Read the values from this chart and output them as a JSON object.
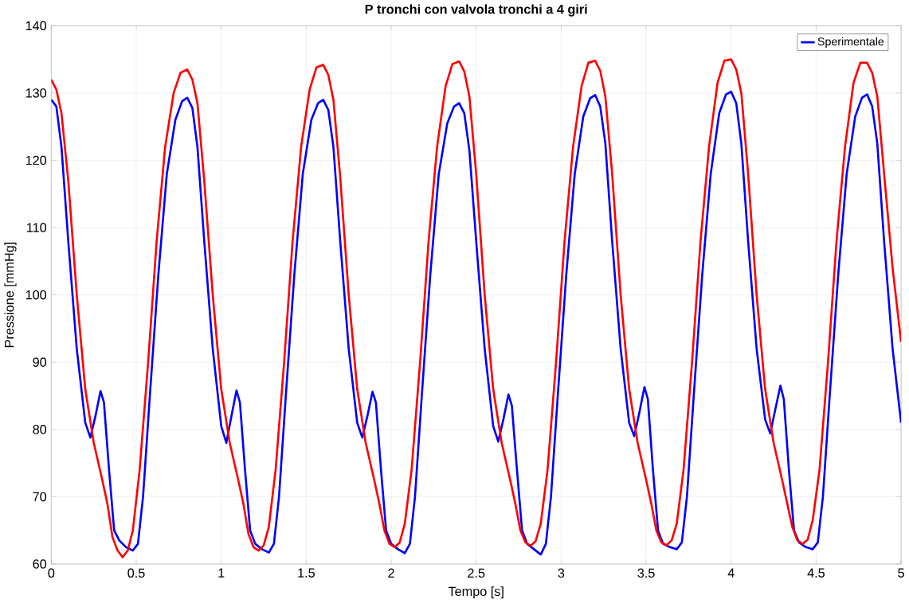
{
  "chart_data": {
    "type": "line",
    "title": "P tronchi con valvola tronchi a 4 giri",
    "xlabel": "Tempo [s]",
    "ylabel": "Pressione [mmHg]",
    "xlim": [
      0,
      5
    ],
    "ylim": [
      60,
      140
    ],
    "xticks": [
      0,
      0.5,
      1,
      1.5,
      2,
      2.5,
      3,
      3.5,
      4,
      4.5,
      5
    ],
    "yticks": [
      60,
      70,
      80,
      90,
      100,
      110,
      120,
      130,
      140
    ],
    "grid": true,
    "legend": "top right",
    "line_style": "solid",
    "marker": "none",
    "series": [
      {
        "name": "Sperimentale",
        "color": "#0000ff",
        "x": [
          0,
          0.03,
          0.06,
          0.1,
          0.15,
          0.2,
          0.23,
          0.26,
          0.29,
          0.31,
          0.34,
          0.37,
          0.4,
          0.44,
          0.48,
          0.51,
          0.54,
          0.58,
          0.63,
          0.68,
          0.73,
          0.77,
          0.8,
          0.83,
          0.86,
          0.9,
          0.95,
          1.0,
          1.03,
          1.06,
          1.09,
          1.11,
          1.14,
          1.17,
          1.2,
          1.24,
          1.28,
          1.31,
          1.34,
          1.38,
          1.43,
          1.48,
          1.53,
          1.57,
          1.6,
          1.63,
          1.66,
          1.7,
          1.75,
          1.8,
          1.83,
          1.86,
          1.89,
          1.91,
          1.94,
          1.97,
          2.0,
          2.04,
          2.08,
          2.11,
          2.14,
          2.18,
          2.23,
          2.28,
          2.33,
          2.37,
          2.4,
          2.43,
          2.46,
          2.5,
          2.55,
          2.6,
          2.63,
          2.66,
          2.69,
          2.71,
          2.74,
          2.77,
          2.8,
          2.84,
          2.88,
          2.91,
          2.94,
          2.98,
          3.03,
          3.08,
          3.13,
          3.17,
          3.2,
          3.23,
          3.26,
          3.3,
          3.35,
          3.4,
          3.43,
          3.46,
          3.49,
          3.51,
          3.54,
          3.57,
          3.6,
          3.64,
          3.68,
          3.71,
          3.74,
          3.78,
          3.83,
          3.88,
          3.93,
          3.97,
          4.0,
          4.03,
          4.06,
          4.1,
          4.15,
          4.2,
          4.23,
          4.26,
          4.29,
          4.31,
          4.34,
          4.37,
          4.4,
          4.44,
          4.48,
          4.51,
          4.54,
          4.58,
          4.63,
          4.68,
          4.73,
          4.77,
          4.8,
          4.83,
          4.86,
          4.9,
          4.95,
          5.0
        ],
        "values": [
          129,
          128,
          122,
          108,
          92,
          81,
          78.8,
          82,
          85.7,
          84,
          74,
          65,
          63.5,
          62.5,
          62,
          63,
          70,
          85,
          103,
          118,
          126,
          128.8,
          129.3,
          127.8,
          122,
          108,
          92,
          80.5,
          78,
          82,
          85.8,
          84,
          74,
          65,
          63,
          62.2,
          61.7,
          63,
          70,
          85,
          103,
          118,
          126,
          128.5,
          129,
          127.5,
          122,
          108,
          92,
          81,
          78.8,
          82,
          85.6,
          84,
          74,
          65,
          63,
          62.2,
          61.6,
          63,
          70,
          85,
          103,
          118,
          125.5,
          128,
          128.5,
          127,
          121.5,
          108,
          92,
          80.5,
          78.2,
          81.5,
          85.2,
          83.5,
          74,
          65,
          63,
          62.2,
          61.4,
          63,
          70,
          85,
          103,
          118,
          126.5,
          129.2,
          129.7,
          128,
          122.5,
          108,
          92,
          81,
          79,
          82.5,
          86.3,
          84.5,
          74,
          65,
          63,
          62.5,
          62.2,
          63.2,
          70,
          85,
          103,
          118,
          127,
          129.8,
          130.2,
          128.5,
          122.5,
          108,
          92,
          81.5,
          79.4,
          83,
          86.5,
          84.5,
          74,
          65,
          63.2,
          62.5,
          62.2,
          63.2,
          70,
          85,
          103,
          118,
          126.5,
          129.3,
          129.8,
          128,
          122.5,
          108,
          92,
          81
        ]
      },
      {
        "color": "#ff0000",
        "x": [
          0,
          0.03,
          0.06,
          0.1,
          0.15,
          0.2,
          0.25,
          0.3,
          0.33,
          0.36,
          0.39,
          0.42,
          0.45,
          0.48,
          0.52,
          0.57,
          0.62,
          0.67,
          0.72,
          0.76,
          0.8,
          0.83,
          0.86,
          0.9,
          0.95,
          1.0,
          1.05,
          1.1,
          1.13,
          1.16,
          1.19,
          1.22,
          1.25,
          1.28,
          1.32,
          1.37,
          1.42,
          1.47,
          1.52,
          1.56,
          1.6,
          1.63,
          1.66,
          1.7,
          1.75,
          1.8,
          1.85,
          1.9,
          1.93,
          1.96,
          1.99,
          2.02,
          2.05,
          2.08,
          2.12,
          2.17,
          2.22,
          2.27,
          2.32,
          2.36,
          2.4,
          2.43,
          2.46,
          2.5,
          2.55,
          2.6,
          2.65,
          2.7,
          2.73,
          2.76,
          2.79,
          2.82,
          2.85,
          2.88,
          2.92,
          2.97,
          3.02,
          3.07,
          3.12,
          3.16,
          3.2,
          3.23,
          3.26,
          3.3,
          3.35,
          3.4,
          3.45,
          3.5,
          3.53,
          3.56,
          3.59,
          3.62,
          3.65,
          3.68,
          3.72,
          3.77,
          3.82,
          3.87,
          3.92,
          3.96,
          4.0,
          4.03,
          4.06,
          4.1,
          4.15,
          4.2,
          4.25,
          4.3,
          4.33,
          4.36,
          4.39,
          4.42,
          4.45,
          4.48,
          4.52,
          4.57,
          4.62,
          4.67,
          4.72,
          4.76,
          4.8,
          4.83,
          4.86,
          4.9,
          4.95,
          5.0
        ],
        "values": [
          132,
          130.5,
          127,
          117,
          100,
          86,
          78,
          72.5,
          69,
          64,
          62,
          61,
          62,
          65,
          74,
          90,
          108,
          122,
          130,
          133,
          133.5,
          132,
          128.5,
          117,
          100,
          86,
          78,
          72.5,
          69,
          64.5,
          62.5,
          62,
          62.8,
          65.5,
          74,
          90,
          108,
          122,
          130.5,
          133.8,
          134.2,
          132.7,
          129,
          117.5,
          100,
          86,
          78,
          72.5,
          69,
          65,
          63,
          62.5,
          63.2,
          66,
          74,
          90,
          108,
          122,
          131,
          134.3,
          134.7,
          133.2,
          129.5,
          118,
          100,
          86,
          78,
          72.5,
          69,
          65,
          63.2,
          62.7,
          63.4,
          66,
          74,
          90,
          108,
          122,
          131,
          134.5,
          134.8,
          133.3,
          129.5,
          118,
          100,
          86,
          78,
          72.5,
          69,
          65,
          63.2,
          62.8,
          63.5,
          66,
          74,
          90,
          108,
          122,
          131.5,
          134.8,
          135,
          133.5,
          130,
          118,
          100,
          86,
          78,
          72.5,
          69,
          65.5,
          63.5,
          63,
          63.6,
          66.5,
          74,
          90,
          108,
          122,
          131.5,
          134.5,
          134.5,
          133,
          129.5,
          118,
          104,
          93
        ]
      }
    ]
  }
}
